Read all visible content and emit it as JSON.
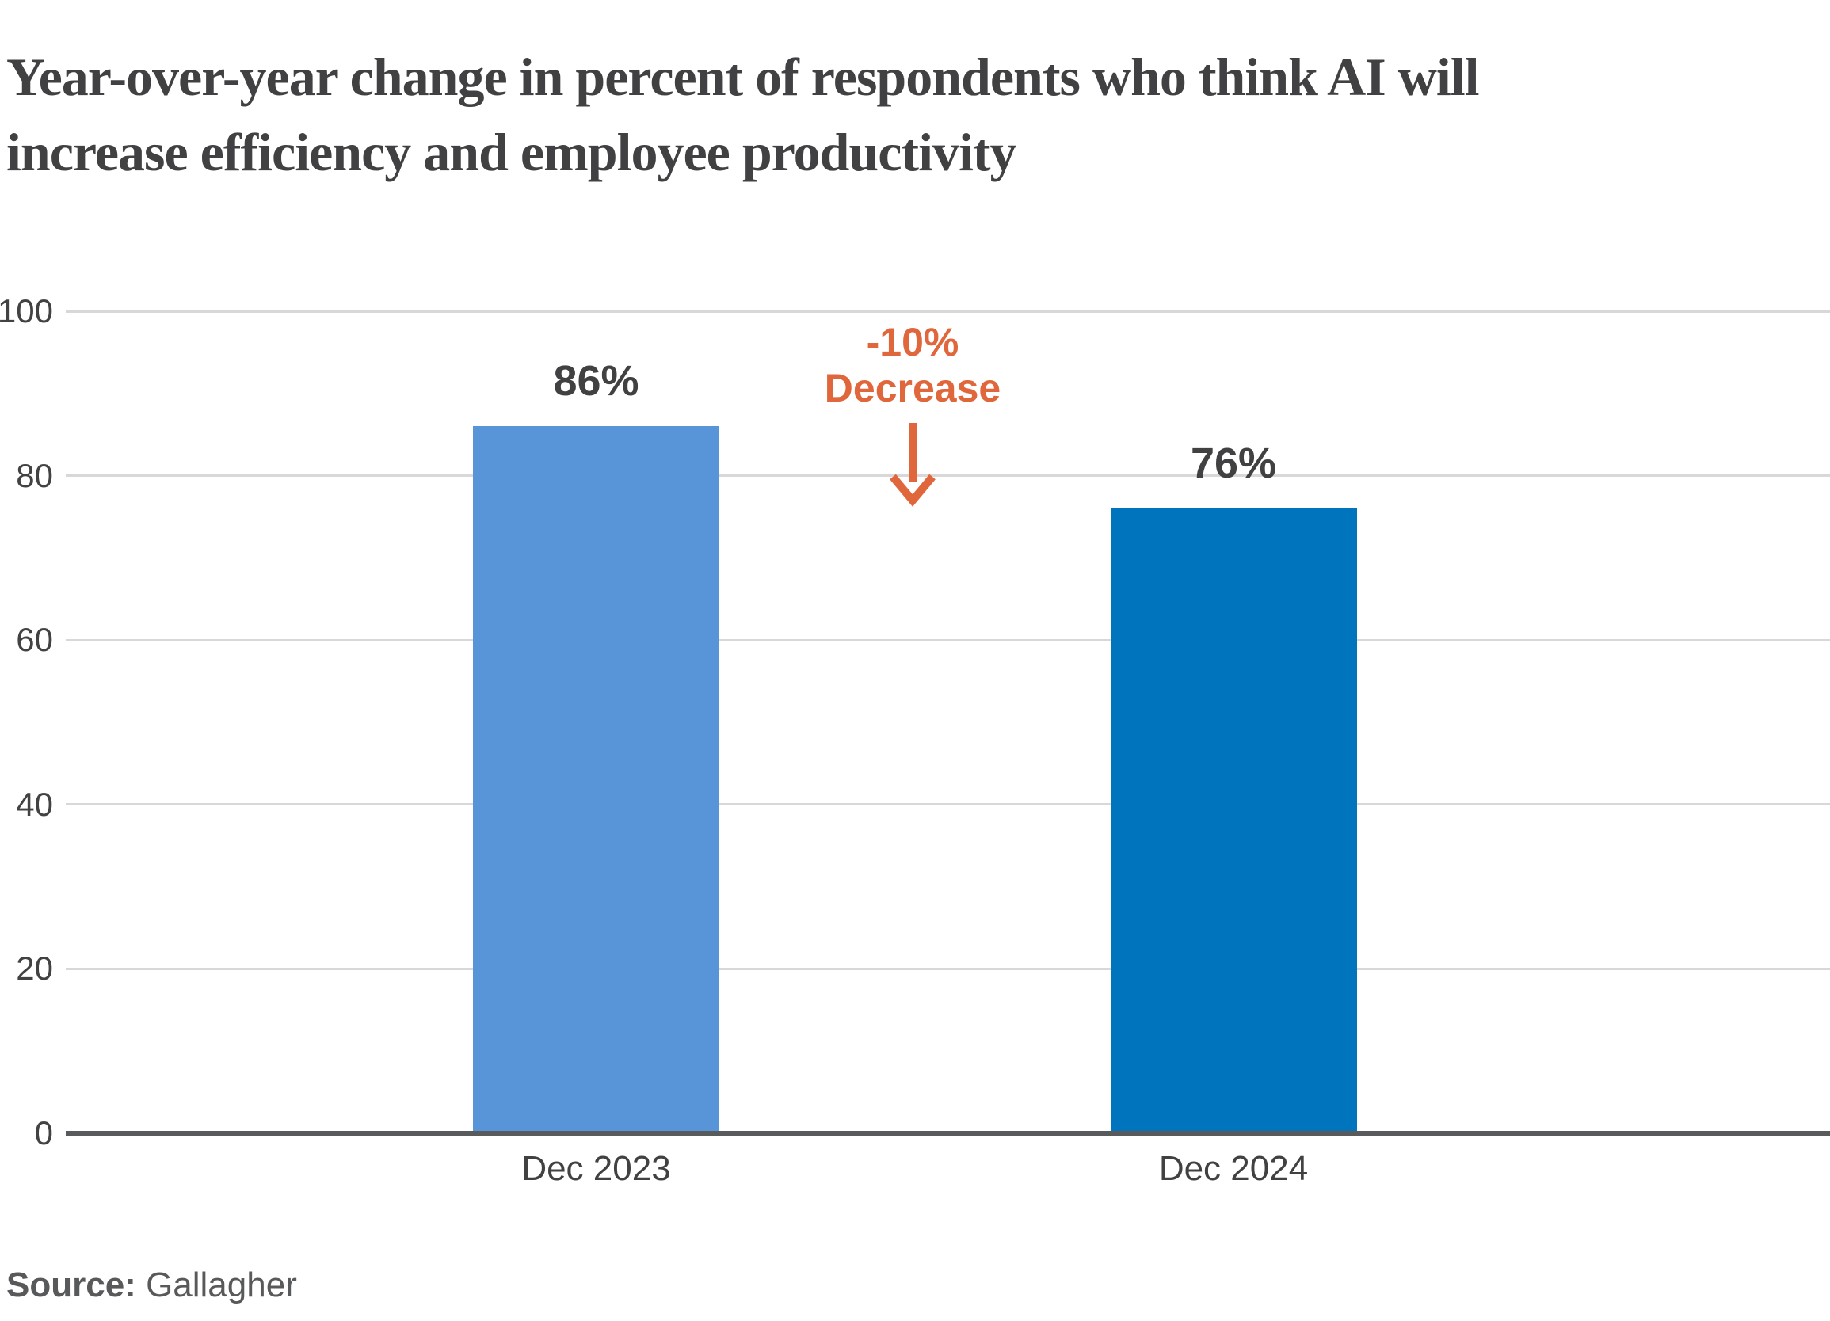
{
  "title": {
    "line1": "Year-over-year change in percent of respondents who think AI will",
    "line2": "increase efficiency and employee productivity"
  },
  "annotation": {
    "line1": "-10%",
    "line2": "Decrease"
  },
  "source": {
    "label": "Source:",
    "value": "Gallagher"
  },
  "colors": {
    "bar_dec_2023": "#5895d8",
    "bar_dec_2024": "#0074bc",
    "annotation_orange": "#e0673b",
    "gridline_gray": "#d8d8d8",
    "axis_line_gray": "#595a5c",
    "title_gray": "#414042",
    "source_gray": "#58595b"
  },
  "chart_data": {
    "type": "bar",
    "title": "Year-over-year change in percent of respondents who think AI will increase efficiency and employee productivity",
    "categories": [
      "Dec 2023",
      "Dec 2024"
    ],
    "values": [
      86,
      76
    ],
    "value_labels": [
      "86%",
      "76%"
    ],
    "bar_colors": [
      "#5895d8",
      "#0074bc"
    ],
    "xlabel": "",
    "ylabel": "",
    "ylim": [
      0,
      100
    ],
    "y_ticks": [
      0,
      20,
      40,
      60,
      80,
      100
    ],
    "grid": "horizontal",
    "legend": "none",
    "annotation": {
      "text_lines": [
        "-10%",
        "Decrease"
      ],
      "color": "#e0673b",
      "arrow": "down",
      "position": "between Dec 2023 and Dec 2024 bars"
    },
    "source": "Gallagher"
  }
}
